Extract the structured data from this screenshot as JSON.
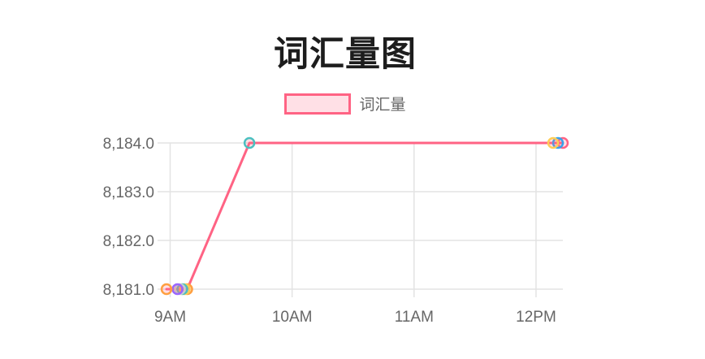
{
  "chart": {
    "title": "词汇量图",
    "legend": {
      "label": "词汇量",
      "box_border_color": "#ff6384",
      "box_fill_color": "rgba(255,99,132,0.2)"
    }
  },
  "chart_data": {
    "type": "line",
    "title": "词汇量图",
    "legend_position": "top",
    "grid": true,
    "xlim": [
      8.95,
      12.22
    ],
    "ylim": [
      8181,
      8184
    ],
    "x_ticks": [
      {
        "value": 9,
        "label": "9AM"
      },
      {
        "value": 10,
        "label": "10AM"
      },
      {
        "value": 11,
        "label": "11AM"
      },
      {
        "value": 12,
        "label": "12PM"
      }
    ],
    "y_ticks": [
      {
        "value": 8184,
        "label": "8,184.0"
      },
      {
        "value": 8183,
        "label": "8,183.0"
      },
      {
        "value": 8182,
        "label": "8,182.0"
      },
      {
        "value": 8181,
        "label": "8,181.0"
      }
    ],
    "series": [
      {
        "name": "词汇量",
        "line_color": "#ff6384",
        "line_width": 3,
        "point_fill": "rgba(255,99,132,0.2)",
        "points": [
          {
            "x_hour": 8.97,
            "y": 8181,
            "color": "#ff9f40",
            "color_name": "orange"
          },
          {
            "x_hour": 9.06,
            "y": 8181,
            "color": "#9966ff",
            "color_name": "purple"
          },
          {
            "x_hour": 9.08,
            "y": 8181,
            "color": "#c9cbcf",
            "color_name": "gray"
          },
          {
            "x_hour": 9.1,
            "y": 8181,
            "color": "#4bc0c0",
            "color_name": "teal"
          },
          {
            "x_hour": 9.12,
            "y": 8181,
            "color": "#ffcd56",
            "color_name": "yellow"
          },
          {
            "x_hour": 9.14,
            "y": 8181,
            "color": "#ff9f40",
            "color_name": "orange"
          },
          {
            "x_hour": 9.65,
            "y": 8184,
            "color": "#4bc0c0",
            "color_name": "teal"
          },
          {
            "x_hour": 12.14,
            "y": 8184,
            "color": "#ffcd56",
            "color_name": "yellow"
          },
          {
            "x_hour": 12.18,
            "y": 8184,
            "color": "#36a2eb",
            "color_name": "blue"
          },
          {
            "x_hour": 12.22,
            "y": 8184,
            "color": "#ff6384",
            "color_name": "pink"
          }
        ]
      }
    ],
    "style": {
      "grid_color": "#e3e3e3",
      "tick_label_color": "#666666",
      "title_color": "#1d1d1d",
      "background": "#ffffff"
    }
  }
}
